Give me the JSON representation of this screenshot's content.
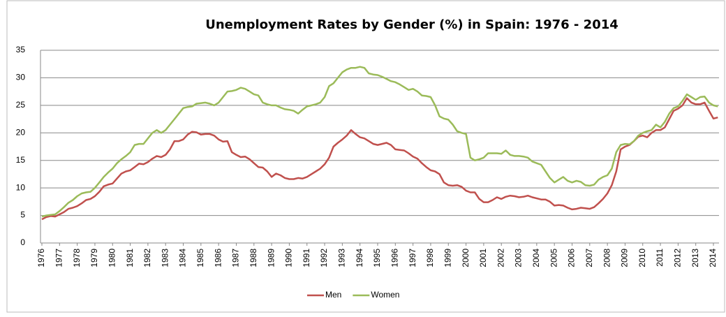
{
  "chart_data": {
    "type": "line",
    "title": "Unemployment Rates by Gender (%) in Spain: 1976 - 2014",
    "categories": [
      "1976",
      null,
      null,
      null,
      "1977",
      null,
      null,
      null,
      "1978",
      null,
      null,
      null,
      "1979",
      null,
      null,
      null,
      "1980",
      null,
      null,
      null,
      "1981",
      null,
      null,
      null,
      "1982",
      null,
      null,
      null,
      "1983",
      null,
      null,
      null,
      "1984",
      null,
      null,
      null,
      "1985",
      null,
      null,
      null,
      "1986",
      null,
      null,
      null,
      "1987",
      null,
      null,
      null,
      "1988",
      null,
      null,
      null,
      "1989",
      null,
      null,
      null,
      "1990",
      null,
      null,
      null,
      "1991",
      null,
      null,
      null,
      "1992",
      null,
      null,
      null,
      "1993",
      null,
      null,
      null,
      "1994",
      null,
      null,
      null,
      "1995",
      null,
      null,
      null,
      "1996",
      null,
      null,
      null,
      "1997",
      null,
      null,
      null,
      "1998",
      null,
      null,
      null,
      "1999",
      null,
      null,
      null,
      "2000",
      null,
      null,
      null,
      "2001",
      null,
      null,
      null,
      "2002",
      null,
      null,
      null,
      "2003",
      null,
      null,
      null,
      "2004",
      null,
      null,
      null,
      "2005",
      null,
      null,
      null,
      "2006",
      null,
      null,
      null,
      "2007",
      null,
      null,
      null,
      "2008",
      null,
      null,
      null,
      "2009",
      null,
      null,
      null,
      "2010",
      null,
      null,
      null,
      "2011",
      null,
      null,
      null,
      "2012",
      null,
      null,
      null,
      "2013",
      null,
      null,
      null,
      "2014",
      null
    ],
    "series": [
      {
        "name": "Men",
        "color": "#c0504d",
        "values": [
          4.3,
          4.7,
          4.9,
          4.8,
          5.2,
          5.6,
          6.2,
          6.4,
          6.7,
          7.2,
          7.8,
          8.0,
          8.5,
          9.3,
          10.3,
          10.6,
          10.8,
          11.7,
          12.6,
          13.0,
          13.2,
          13.8,
          14.4,
          14.3,
          14.7,
          15.3,
          15.8,
          15.6,
          16.0,
          17.0,
          18.5,
          18.5,
          18.8,
          19.7,
          20.2,
          20.1,
          19.7,
          19.8,
          19.8,
          19.5,
          18.8,
          18.4,
          18.5,
          16.5,
          16.0,
          15.6,
          15.7,
          15.2,
          14.5,
          13.8,
          13.7,
          13.0,
          12.0,
          12.6,
          12.3,
          11.8,
          11.6,
          11.6,
          11.8,
          11.7,
          12.0,
          12.5,
          13.0,
          13.5,
          14.3,
          15.5,
          17.5,
          18.2,
          18.8,
          19.5,
          20.5,
          19.8,
          19.2,
          19.0,
          18.5,
          18.0,
          17.8,
          18.0,
          18.2,
          17.8,
          17.0,
          16.9,
          16.8,
          16.3,
          15.7,
          15.3,
          14.5,
          13.8,
          13.2,
          13.0,
          12.5,
          11.0,
          10.5,
          10.4,
          10.5,
          10.2,
          9.5,
          9.2,
          9.2,
          8.0,
          7.4,
          7.4,
          7.8,
          8.3,
          8.0,
          8.4,
          8.6,
          8.5,
          8.3,
          8.4,
          8.6,
          8.3,
          8.1,
          7.9,
          7.9,
          7.5,
          6.8,
          6.9,
          6.8,
          6.4,
          6.1,
          6.2,
          6.4,
          6.3,
          6.2,
          6.5,
          7.2,
          8.0,
          9.0,
          10.5,
          13.0,
          17.0,
          17.5,
          17.8,
          18.5,
          19.3,
          19.5,
          19.2,
          20.0,
          20.5,
          20.5,
          21.0,
          22.5,
          24.0,
          24.4,
          25.0,
          26.3,
          25.5,
          25.2,
          25.2,
          25.5,
          24.0,
          22.6,
          22.8
        ]
      },
      {
        "name": "Women",
        "color": "#9bbb59",
        "values": [
          4.8,
          5.0,
          5.1,
          5.2,
          5.8,
          6.5,
          7.3,
          7.8,
          8.5,
          9.0,
          9.2,
          9.3,
          10.0,
          11.0,
          12.0,
          12.8,
          13.5,
          14.5,
          15.2,
          15.8,
          16.5,
          17.8,
          18.0,
          18.0,
          19.0,
          20.0,
          20.5,
          20.0,
          20.5,
          21.5,
          22.5,
          23.5,
          24.5,
          24.7,
          24.8,
          25.3,
          25.4,
          25.5,
          25.3,
          25.0,
          25.5,
          26.5,
          27.5,
          27.6,
          27.8,
          28.2,
          28.0,
          27.5,
          27.0,
          26.8,
          25.5,
          25.2,
          25.0,
          25.0,
          24.6,
          24.3,
          24.2,
          24.0,
          23.5,
          24.2,
          24.8,
          25.0,
          25.2,
          25.5,
          26.5,
          28.5,
          29.0,
          30.0,
          31.0,
          31.5,
          31.8,
          31.8,
          32.0,
          31.8,
          30.8,
          30.6,
          30.5,
          30.2,
          29.8,
          29.4,
          29.2,
          28.8,
          28.3,
          27.8,
          28.0,
          27.5,
          26.8,
          26.7,
          26.5,
          25.0,
          23.0,
          22.6,
          22.4,
          21.5,
          20.3,
          20.0,
          19.8,
          15.5,
          15.0,
          15.2,
          15.5,
          16.3,
          16.3,
          16.3,
          16.2,
          16.8,
          16.0,
          15.8,
          15.8,
          15.7,
          15.5,
          14.8,
          14.5,
          14.2,
          13.0,
          11.8,
          11.0,
          11.5,
          12.0,
          11.3,
          11.0,
          11.3,
          11.1,
          10.5,
          10.4,
          10.6,
          11.5,
          12.0,
          12.3,
          13.5,
          16.5,
          17.8,
          18.0,
          17.9,
          18.5,
          19.5,
          20.0,
          20.3,
          20.5,
          21.5,
          21.0,
          22.0,
          23.5,
          24.5,
          24.8,
          25.8,
          27.0,
          26.5,
          26.0,
          26.5,
          26.6,
          25.5,
          25.0,
          24.8
        ]
      }
    ],
    "ylim": [
      0,
      35
    ],
    "yticks": [
      0,
      5,
      10,
      15,
      20,
      25,
      30,
      35
    ],
    "grid": true,
    "legend": "bottom"
  }
}
